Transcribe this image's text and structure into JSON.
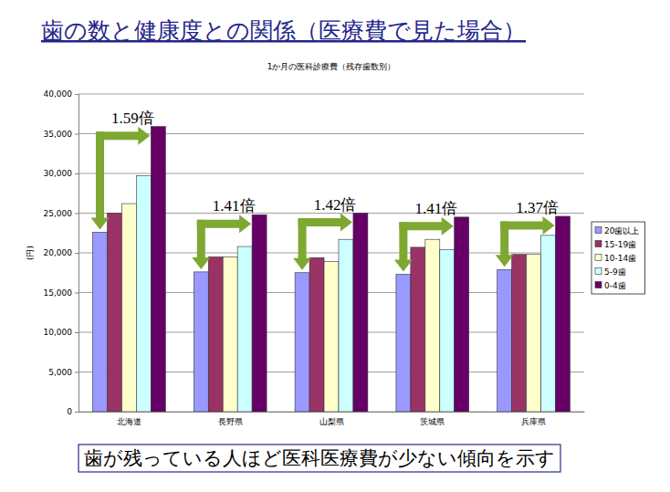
{
  "chart_data": {
    "type": "bar",
    "title": "歯の数と健康度との関係（医療費で見た場合）",
    "subtitle": "1か月の医科診療費（残存歯数別）",
    "ylabel": "(円)",
    "categories": [
      "北海道",
      "長野県",
      "山梨県",
      "茨城県",
      "兵庫県"
    ],
    "series": [
      {
        "name": "20歯以上",
        "color": "#9999ff",
        "values": [
          22600,
          17600,
          17500,
          17300,
          17900
        ]
      },
      {
        "name": "15-19歯",
        "color": "#993366",
        "values": [
          25000,
          19500,
          19400,
          20700,
          19800
        ]
      },
      {
        "name": "10-14歯",
        "color": "#ffffcc",
        "values": [
          26200,
          19500,
          18900,
          21700,
          19800
        ]
      },
      {
        "name": "5-9歯",
        "color": "#ccffff",
        "values": [
          29700,
          20800,
          21700,
          20400,
          22200
        ]
      },
      {
        "name": "0-4歯",
        "color": "#660066",
        "values": [
          35900,
          24800,
          25000,
          24500,
          24600
        ]
      }
    ],
    "annotations": [
      "1.59倍",
      "1.41倍",
      "1.42倍",
      "1.41倍",
      "1.37倍"
    ],
    "caption": "歯が残っている人ほど医科医療費が少ない傾向を示す",
    "ylim": [
      0,
      40000
    ],
    "yticks": [
      0,
      {
        "value": 5000,
        "label": "5,000"
      },
      {
        "value": 10000,
        "label": "10,000"
      },
      {
        "value": 15000,
        "label": "15,000"
      },
      {
        "value": 20000,
        "label": "20,000"
      },
      {
        "value": 25000,
        "label": "25,000"
      },
      {
        "value": 30000,
        "label": "30,000"
      },
      {
        "value": 35000,
        "label": "35,000"
      },
      {
        "value": 40000,
        "label": "40,000"
      }
    ],
    "grid": true,
    "legend": "right"
  }
}
